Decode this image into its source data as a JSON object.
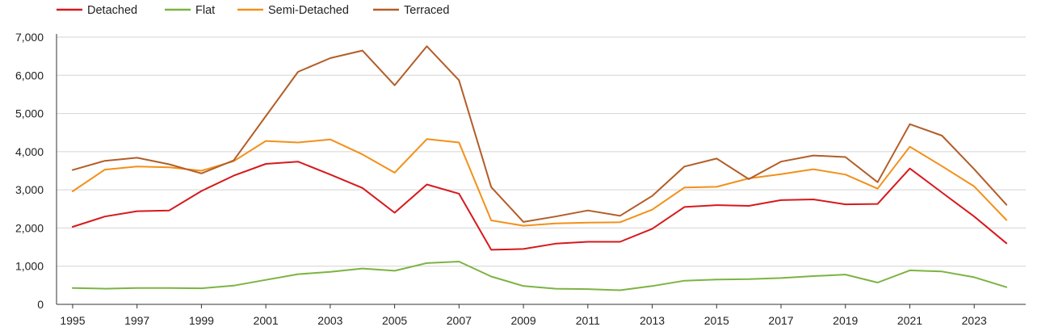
{
  "chart_data": {
    "type": "line",
    "title": "",
    "xlabel": "",
    "ylabel": "",
    "ylim": [
      0,
      7000
    ],
    "yticks": [
      "0",
      "1,000",
      "2,000",
      "3,000",
      "4,000",
      "5,000",
      "6,000",
      "7,000"
    ],
    "ytick_values": [
      0,
      1000,
      2000,
      3000,
      4000,
      5000,
      6000,
      7000
    ],
    "xticks": [
      "1995",
      "1997",
      "1999",
      "2001",
      "2003",
      "2005",
      "2007",
      "2009",
      "2011",
      "2013",
      "2015",
      "2017",
      "2019",
      "2021",
      "2023"
    ],
    "xtick_values": [
      1995,
      1997,
      1999,
      2001,
      2003,
      2005,
      2007,
      2009,
      2011,
      2013,
      2015,
      2017,
      2019,
      2021,
      2023
    ],
    "x": [
      1995,
      1996,
      1997,
      1998,
      1999,
      2000,
      2001,
      2002,
      2003,
      2004,
      2005,
      2006,
      2007,
      2008,
      2009,
      2010,
      2011,
      2012,
      2013,
      2014,
      2015,
      2016,
      2017,
      2018,
      2019,
      2020,
      2021,
      2022,
      2023,
      2024
    ],
    "grid": true,
    "legend_position": "top-left",
    "series": [
      {
        "name": "Detached",
        "color": "#d7191c",
        "values": [
          2030,
          2300,
          2440,
          2460,
          2970,
          3370,
          3680,
          3740,
          3400,
          3050,
          2400,
          3140,
          2900,
          1430,
          1450,
          1590,
          1640,
          1640,
          1980,
          2550,
          2600,
          2580,
          2730,
          2750,
          2620,
          2630,
          3560,
          2930,
          2300,
          1600
        ]
      },
      {
        "name": "Flat",
        "color": "#7cb342",
        "values": [
          430,
          410,
          430,
          430,
          420,
          490,
          640,
          790,
          850,
          940,
          880,
          1080,
          1120,
          730,
          480,
          410,
          400,
          370,
          480,
          620,
          650,
          660,
          690,
          740,
          780,
          570,
          890,
          860,
          710,
          450
        ]
      },
      {
        "name": "Semi-Detached",
        "color": "#f39019",
        "values": [
          2960,
          3530,
          3610,
          3590,
          3500,
          3750,
          4280,
          4240,
          4320,
          3930,
          3450,
          4330,
          4240,
          2200,
          2060,
          2120,
          2140,
          2150,
          2480,
          3060,
          3080,
          3300,
          3410,
          3540,
          3400,
          3030,
          4130,
          3620,
          3090,
          2210
        ]
      },
      {
        "name": "Terraced",
        "color": "#b35d27",
        "values": [
          3520,
          3760,
          3840,
          3670,
          3430,
          3770,
          4930,
          6090,
          6450,
          6650,
          5740,
          6760,
          5870,
          3070,
          2160,
          2300,
          2460,
          2320,
          2840,
          3610,
          3820,
          3280,
          3740,
          3900,
          3860,
          3200,
          4720,
          4420,
          3540,
          2610
        ]
      }
    ]
  }
}
